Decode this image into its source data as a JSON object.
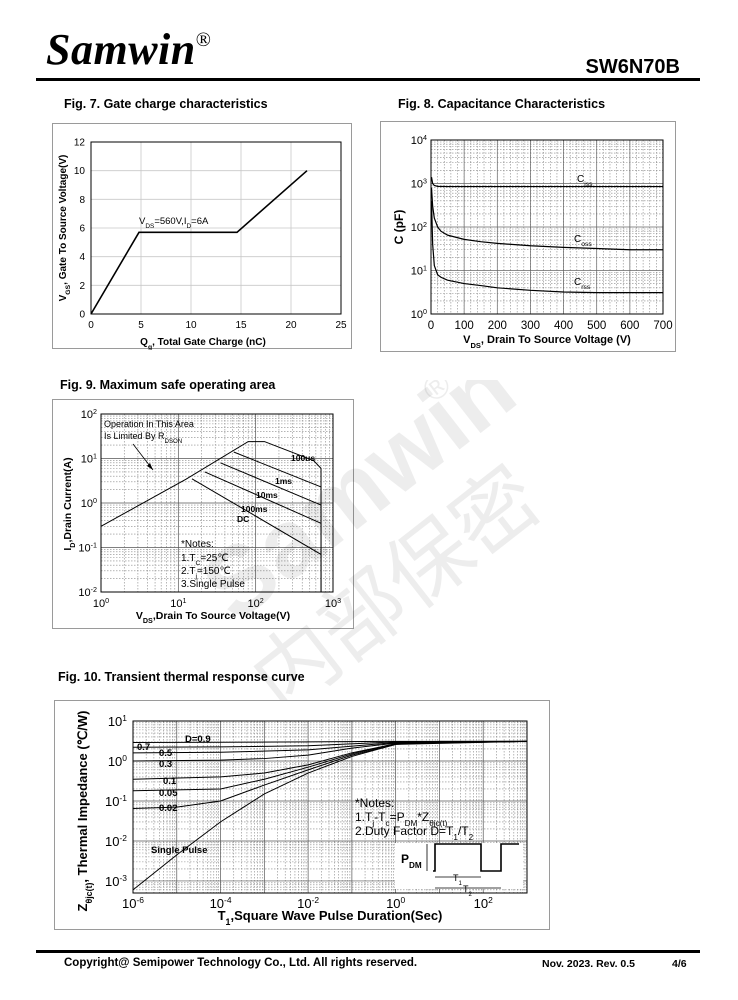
{
  "header": {
    "brand": "Samwin",
    "brand_reg": "®",
    "part_number": "SW6N70B"
  },
  "watermark": {
    "text_latin": "Samwin",
    "text_reg": "®",
    "text_cjk": "内部保密"
  },
  "footer": {
    "copyright": "Copyright@ Semipower Technology Co., Ltd. All rights reserved.",
    "revision": "Nov. 2023. Rev. 0.5",
    "page": "4/6"
  },
  "chart_data": [
    {
      "id": "fig7",
      "type": "line",
      "title": "Fig. 7. Gate charge characteristics",
      "ylabel_parts": [
        "V",
        "GS",
        ",  Gate To Source Voltage(V)"
      ],
      "xlabel_parts": [
        "Q",
        "g",
        ", Total Gate Charge (nC)"
      ],
      "xlim": [
        0,
        25
      ],
      "ylim": [
        0,
        12
      ],
      "xticks": [
        "0",
        "5",
        "10",
        "15",
        "20",
        "25"
      ],
      "yticks": [
        "0",
        "2",
        "4",
        "6",
        "8",
        "10",
        "12"
      ],
      "annotation_parts": [
        "V",
        "DS",
        "=560V,I",
        "D",
        "=6A"
      ],
      "series": [
        {
          "x": [
            0,
            4.8,
            14.6,
            21.6
          ],
          "y": [
            0,
            5.7,
            5.7,
            10
          ]
        }
      ]
    },
    {
      "id": "fig8",
      "type": "line",
      "title": "Fig. 8. Capacitance Characteristics",
      "ylabel": "C (pF)",
      "xlabel_parts": [
        "V",
        "DS",
        ",  Drain To Source Voltage (V)"
      ],
      "xlim": [
        0,
        700
      ],
      "ylim": [
        1,
        10000
      ],
      "yscale": "log",
      "xticks": [
        "0",
        "100",
        "200",
        "300",
        "400",
        "500",
        "600",
        "700"
      ],
      "yticks": [
        {
          "b": "10",
          "e": "0"
        },
        {
          "b": "10",
          "e": "1"
        },
        {
          "b": "10",
          "e": "2"
        },
        {
          "b": "10",
          "e": "3"
        },
        {
          "b": "10",
          "e": "4"
        }
      ],
      "series": [
        {
          "name_parts": [
            "C",
            "iss"
          ],
          "x": [
            0,
            5,
            10,
            20,
            50,
            100,
            200,
            300,
            400,
            500,
            600,
            700
          ],
          "y": [
            1400,
            1000,
            900,
            860,
            850,
            850,
            850,
            850,
            850,
            850,
            850,
            850
          ]
        },
        {
          "name_parts": [
            "C",
            "oss"
          ],
          "x": [
            0,
            5,
            10,
            20,
            30,
            50,
            100,
            150,
            200,
            300,
            400,
            500,
            600,
            700
          ],
          "y": [
            800,
            300,
            160,
            100,
            80,
            65,
            52,
            46,
            42,
            37,
            34,
            32,
            30,
            30
          ]
        },
        {
          "name_parts": [
            "C",
            "rss"
          ],
          "x": [
            0,
            5,
            10,
            20,
            30,
            50,
            100,
            150,
            200,
            300,
            400,
            500,
            600,
            700
          ],
          "y": [
            400,
            40,
            13,
            8,
            7,
            6,
            5,
            4.5,
            4,
            3.5,
            3.2,
            3.1,
            3.1,
            3.1
          ]
        }
      ]
    },
    {
      "id": "fig9",
      "type": "line",
      "title": "Fig. 9. Maximum safe operating area",
      "ylabel_parts": [
        "I",
        "D",
        ",Drain Current(A)"
      ],
      "xlabel_parts": [
        "V",
        "DS",
        ",Drain To Source Voltage(V)"
      ],
      "xscale": "log",
      "yscale": "log",
      "xlim": [
        1,
        1000
      ],
      "ylim": [
        0.01,
        100
      ],
      "xticks": [
        {
          "b": "10",
          "e": "0"
        },
        {
          "b": "10",
          "e": "1"
        },
        {
          "b": "10",
          "e": "2"
        },
        {
          "b": "10",
          "e": "3"
        }
      ],
      "yticks": [
        {
          "b": "10",
          "e": "-2"
        },
        {
          "b": "10",
          "e": "-1"
        },
        {
          "b": "10",
          "e": "0"
        },
        {
          "b": "10",
          "e": "1"
        },
        {
          "b": "10",
          "e": "2"
        }
      ],
      "note_area": [
        "Operation In This Area",
        "Is Limited By R"
      ],
      "note_area_sub": "DSON",
      "notes": [
        "*Notes:",
        "1.T",
        "C",
        "=25℃",
        "2.T",
        "j",
        "=150℃",
        "3.Single Pulse"
      ],
      "series": [
        {
          "name": "100us",
          "x": [
            1,
            12.5,
            80,
            130,
            560,
            700,
            700
          ],
          "y": [
            0.3,
            3.4,
            24,
            24,
            9,
            6,
            0.01
          ]
        },
        {
          "name": "1ms",
          "x": [
            52,
            700,
            700
          ],
          "y": [
            14,
            2.3,
            0.01
          ]
        },
        {
          "name": "10ms",
          "x": [
            35,
            700,
            700
          ],
          "y": [
            8,
            0.9,
            0.01
          ]
        },
        {
          "name": "100ms",
          "x": [
            22,
            700,
            700
          ],
          "y": [
            5,
            0.35,
            0.01
          ]
        },
        {
          "name": "DC",
          "x": [
            15,
            700,
            700
          ],
          "y": [
            3.5,
            0.07,
            0.01
          ]
        }
      ]
    },
    {
      "id": "fig10",
      "type": "line",
      "title": "Fig. 10. Transient thermal response curve",
      "ylabel_parts": [
        "Z",
        "θjc(t)",
        ", Thermal  Impedance (℃/W)"
      ],
      "xlabel_parts": [
        "T",
        "1",
        ",Square Wave Pulse Duration(Sec)"
      ],
      "xscale": "log",
      "yscale": "log",
      "xlim": [
        1e-06,
        1000
      ],
      "ylim": [
        0.0005,
        10
      ],
      "xticks": [
        {
          "b": "10",
          "e": "-6"
        },
        {
          "b": "10",
          "e": "-4"
        },
        {
          "b": "10",
          "e": "-2"
        },
        {
          "b": "10",
          "e": "0"
        },
        {
          "b": "10",
          "e": "2"
        }
      ],
      "yticks": [
        {
          "b": "10",
          "e": "-3"
        },
        {
          "b": "10",
          "e": "-2"
        },
        {
          "b": "10",
          "e": "-1"
        },
        {
          "b": "10",
          "e": "0"
        },
        {
          "b": "10",
          "e": "1"
        }
      ],
      "notes": [
        "*Notes:",
        "1.T",
        "j",
        "-T",
        "c",
        "=P",
        "DM",
        "*Z",
        "θjc(t)",
        "2.Duty Factor D=T",
        "1",
        "/T",
        "2"
      ],
      "pdm_label": [
        "P",
        "DM"
      ],
      "t1_label": [
        "T",
        "1"
      ],
      "t2_label": [
        "T",
        "2"
      ],
      "series": [
        {
          "name": "D=0.9",
          "x": [
            1e-06,
            0.0001,
            0.01,
            1,
            1000
          ],
          "y": [
            2.9,
            2.95,
            3.0,
            3.1,
            3.1
          ]
        },
        {
          "name": "0.7",
          "x": [
            1e-06,
            0.0001,
            0.01,
            1,
            1000
          ],
          "y": [
            2.2,
            2.25,
            2.4,
            3.0,
            3.1
          ]
        },
        {
          "name": "0.5",
          "x": [
            1e-06,
            0.0001,
            0.01,
            1,
            1000
          ],
          "y": [
            1.6,
            1.65,
            1.9,
            2.9,
            3.1
          ]
        },
        {
          "name": "0.3",
          "x": [
            1e-06,
            0.0001,
            0.001,
            0.01,
            0.1,
            1,
            1000
          ],
          "y": [
            1.0,
            1.05,
            1.15,
            1.4,
            2.1,
            2.8,
            3.1
          ]
        },
        {
          "name": "0.1",
          "x": [
            1e-06,
            0.0001,
            0.001,
            0.01,
            0.1,
            1,
            1000
          ],
          "y": [
            0.35,
            0.4,
            0.5,
            0.8,
            1.6,
            2.7,
            3.1
          ]
        },
        {
          "name": "0.05",
          "x": [
            1e-06,
            0.0001,
            0.001,
            0.01,
            0.1,
            1,
            1000
          ],
          "y": [
            0.18,
            0.2,
            0.35,
            0.7,
            1.5,
            2.7,
            3.1
          ]
        },
        {
          "name": "0.02",
          "x": [
            1e-06,
            1e-05,
            0.0001,
            0.001,
            0.01,
            0.1,
            1,
            1000
          ],
          "y": [
            0.065,
            0.07,
            0.1,
            0.25,
            0.6,
            1.4,
            2.6,
            3.1
          ]
        },
        {
          "name": "Single Pulse",
          "x": [
            1e-06,
            1e-05,
            0.0001,
            0.001,
            0.01,
            0.1,
            1,
            10,
            1000
          ],
          "y": [
            0.0006,
            0.0045,
            0.03,
            0.15,
            0.5,
            1.3,
            2.6,
            3.1,
            3.1
          ]
        }
      ]
    }
  ]
}
